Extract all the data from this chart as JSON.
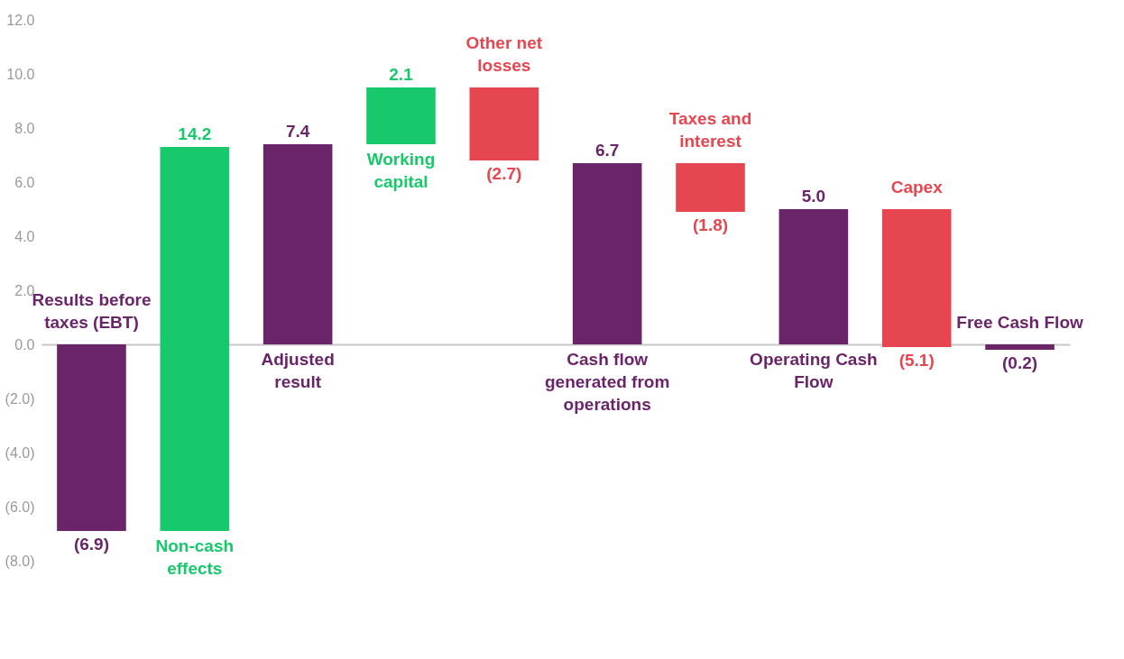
{
  "chart_data": {
    "type": "bar",
    "categories": [
      "Results before taxes (EBT)",
      "Non-cash effects",
      "Adjusted result",
      "Working capital",
      "Other net losses",
      "Cash flow generated from operations",
      "Taxes and interest",
      "Operating Cash Flow",
      "Capex",
      "Free Cash Flow"
    ],
    "values": [
      -6.9,
      14.2,
      7.4,
      2.1,
      -2.7,
      6.7,
      -1.8,
      5.0,
      -5.1,
      -0.2
    ],
    "base": [
      0,
      -6.9,
      0,
      7.4,
      9.5,
      0,
      6.7,
      0,
      5.0,
      0
    ],
    "colors": [
      "#6a2469",
      "#18c96b",
      "#6a2469",
      "#18c96b",
      "#e5464f",
      "#6a2469",
      "#e5464f",
      "#6a2469",
      "#e5464f",
      "#6a2469"
    ],
    "value_labels": [
      "(6.9)",
      "14.2",
      "7.4",
      "2.1",
      "(2.7)",
      "6.7",
      "(1.8)",
      "5.0",
      "(5.1)",
      "(0.2)"
    ],
    "ylim": [
      -8,
      12
    ],
    "yticks": [
      {
        "value": -8,
        "label": "(8.0)"
      },
      {
        "value": -6,
        "label": "(6.0)"
      },
      {
        "value": -4,
        "label": "(4.0)"
      },
      {
        "value": -2,
        "label": "(2.0)"
      },
      {
        "value": 0,
        "label": "0.0"
      },
      {
        "value": 2,
        "label": "2.0"
      },
      {
        "value": 4,
        "label": "4.0"
      },
      {
        "value": 6,
        "label": "6.0"
      },
      {
        "value": 8,
        "label": "8.0"
      },
      {
        "value": 10,
        "label": "10.0"
      },
      {
        "value": 12,
        "label": "12.0"
      }
    ],
    "tick_labels": "y",
    "grid": false,
    "legend": false
  }
}
